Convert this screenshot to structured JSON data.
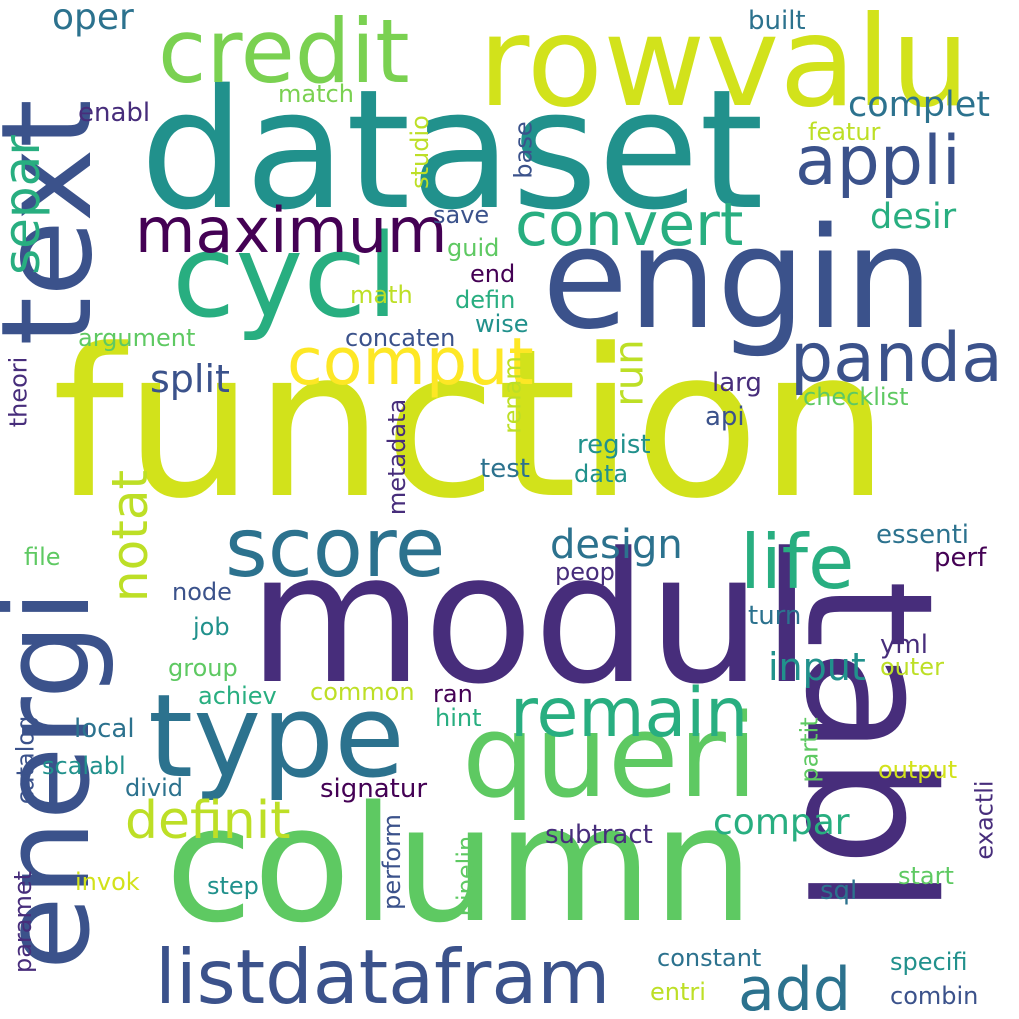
{
  "palette": {
    "dark_purple": "#440154",
    "purple": "#472d7b",
    "indigo": "#3b528b",
    "blue": "#2c728e",
    "teal": "#21918c",
    "green_teal": "#28ae80",
    "green": "#5ec962",
    "light_green": "#7ad151",
    "yellow_green": "#bddf26",
    "yellow": "#fde725",
    "lime": "#d2e21b"
  },
  "words": [
    {
      "text": "function",
      "color": "lime"
    },
    {
      "text": "dataset",
      "color": "teal"
    },
    {
      "text": "modul",
      "color": "purple"
    },
    {
      "text": "column",
      "color": "green"
    },
    {
      "text": "tabl",
      "color": "purple"
    },
    {
      "text": "engin",
      "color": "indigo"
    },
    {
      "text": "rowvalu",
      "color": "lime"
    },
    {
      "text": "text",
      "color": "indigo"
    },
    {
      "text": "energi",
      "color": "indigo"
    },
    {
      "text": "cycl",
      "color": "green_teal"
    },
    {
      "text": "credit",
      "color": "light_green"
    },
    {
      "text": "type",
      "color": "blue"
    },
    {
      "text": "queri",
      "color": "green"
    },
    {
      "text": "score",
      "color": "blue"
    },
    {
      "text": "listdatafram",
      "color": "indigo"
    },
    {
      "text": "appli",
      "color": "indigo"
    },
    {
      "text": "maximum",
      "color": "dark_purple"
    },
    {
      "text": "panda",
      "color": "indigo"
    },
    {
      "text": "comput",
      "color": "yellow"
    },
    {
      "text": "life",
      "color": "green_teal"
    },
    {
      "text": "remain",
      "color": "green_teal"
    },
    {
      "text": "convert",
      "color": "green_teal"
    },
    {
      "text": "separ",
      "color": "green_teal"
    },
    {
      "text": "notat",
      "color": "yellow_green"
    },
    {
      "text": "definit",
      "color": "yellow_green"
    },
    {
      "text": "add",
      "color": "blue"
    },
    {
      "text": "oper",
      "color": "blue"
    },
    {
      "text": "complet",
      "color": "blue"
    },
    {
      "text": "desir",
      "color": "green_teal"
    },
    {
      "text": "design",
      "color": "blue"
    },
    {
      "text": "input",
      "color": "teal"
    },
    {
      "text": "compar",
      "color": "green_teal"
    },
    {
      "text": "split",
      "color": "indigo"
    },
    {
      "text": "run",
      "color": "yellow_green"
    },
    {
      "text": "built",
      "color": "blue"
    },
    {
      "text": "match",
      "color": "light_green"
    },
    {
      "text": "enabl",
      "color": "purple"
    },
    {
      "text": "studio",
      "color": "yellow_green"
    },
    {
      "text": "base",
      "color": "indigo"
    },
    {
      "text": "featur",
      "color": "yellow_green"
    },
    {
      "text": "save",
      "color": "indigo"
    },
    {
      "text": "guid",
      "color": "green"
    },
    {
      "text": "end",
      "color": "dark_purple"
    },
    {
      "text": "math",
      "color": "yellow_green"
    },
    {
      "text": "defin",
      "color": "green_teal"
    },
    {
      "text": "wise",
      "color": "teal"
    },
    {
      "text": "argument",
      "color": "green"
    },
    {
      "text": "concaten",
      "color": "indigo"
    },
    {
      "text": "theori",
      "color": "purple"
    },
    {
      "text": "renam",
      "color": "yellow_green"
    },
    {
      "text": "metadata",
      "color": "purple"
    },
    {
      "text": "larg",
      "color": "purple"
    },
    {
      "text": "api",
      "color": "indigo"
    },
    {
      "text": "checklist",
      "color": "green"
    },
    {
      "text": "regist",
      "color": "teal"
    },
    {
      "text": "data",
      "color": "teal"
    },
    {
      "text": "test",
      "color": "blue"
    },
    {
      "text": "essenti",
      "color": "blue"
    },
    {
      "text": "perf",
      "color": "dark_purple"
    },
    {
      "text": "file",
      "color": "green"
    },
    {
      "text": "peopl",
      "color": "purple"
    },
    {
      "text": "node",
      "color": "indigo"
    },
    {
      "text": "job",
      "color": "teal"
    },
    {
      "text": "turn",
      "color": "blue"
    },
    {
      "text": "group",
      "color": "green"
    },
    {
      "text": "yml",
      "color": "purple"
    },
    {
      "text": "outer",
      "color": "yellow_green"
    },
    {
      "text": "achiev",
      "color": "green_teal"
    },
    {
      "text": "common",
      "color": "yellow_green"
    },
    {
      "text": "ran",
      "color": "dark_purple"
    },
    {
      "text": "catalog",
      "color": "indigo"
    },
    {
      "text": "local",
      "color": "blue"
    },
    {
      "text": "hint",
      "color": "green_teal"
    },
    {
      "text": "partit",
      "color": "green"
    },
    {
      "text": "scalabl",
      "color": "teal"
    },
    {
      "text": "output",
      "color": "lime"
    },
    {
      "text": "divid",
      "color": "blue"
    },
    {
      "text": "signatur",
      "color": "dark_purple"
    },
    {
      "text": "exactli",
      "color": "purple"
    },
    {
      "text": "perform",
      "color": "indigo"
    },
    {
      "text": "subtract",
      "color": "purple"
    },
    {
      "text": "invok",
      "color": "lime"
    },
    {
      "text": "step",
      "color": "teal"
    },
    {
      "text": "paramet",
      "color": "purple"
    },
    {
      "text": "pipelin",
      "color": "green"
    },
    {
      "text": "sql",
      "color": "blue"
    },
    {
      "text": "start",
      "color": "green"
    },
    {
      "text": "constant",
      "color": "blue"
    },
    {
      "text": "specifi",
      "color": "teal"
    },
    {
      "text": "entri",
      "color": "yellow_green"
    },
    {
      "text": "combin",
      "color": "indigo"
    }
  ]
}
